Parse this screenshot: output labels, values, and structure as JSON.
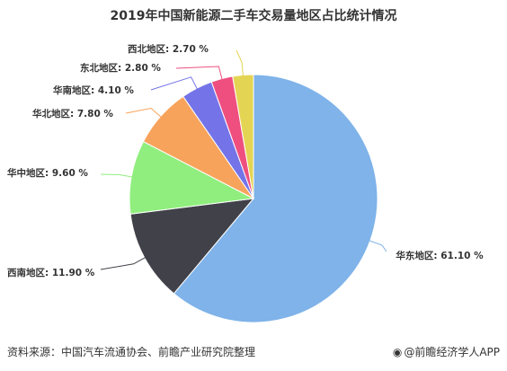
{
  "chart_data": {
    "type": "pie",
    "title": "2019年中国新能源二手车交易量地区占比统计情况",
    "unit": "%",
    "slices": [
      {
        "label": "华东地区",
        "value": 61.1,
        "display": "61.10 %",
        "color": "#7fb3e9"
      },
      {
        "label": "西南地区",
        "value": 11.9,
        "display": "11.90 %",
        "color": "#414149"
      },
      {
        "label": "华中地区",
        "value": 9.6,
        "display": "9.60 %",
        "color": "#90ee7e"
      },
      {
        "label": "华北地区",
        "value": 7.8,
        "display": "7.80 %",
        "color": "#f7a35c"
      },
      {
        "label": "华南地区",
        "value": 4.1,
        "display": "4.10 %",
        "color": "#7474e8"
      },
      {
        "label": "东北地区",
        "value": 2.8,
        "display": "2.80 %",
        "color": "#ee4f7f"
      },
      {
        "label": "西北地区",
        "value": 2.7,
        "display": "2.70 %",
        "color": "#e4d453"
      }
    ]
  },
  "footer": {
    "source": "资料来源：中国汽车流通协会、前瞻产业研究院整理",
    "brand": "@前瞻经济学人APP"
  }
}
